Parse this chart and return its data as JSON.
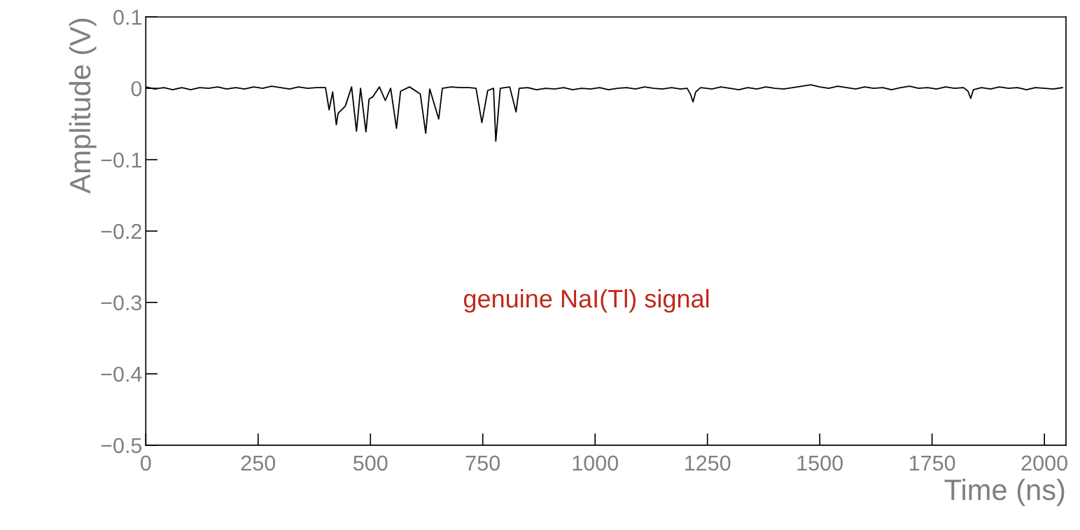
{
  "chart_data": {
    "type": "line",
    "xlabel": "Time (ns)",
    "ylabel": "Amplitude (V)",
    "annotations": [
      "genuine NaI(Tl) signal"
    ],
    "xlim": [
      0,
      2048
    ],
    "ylim": [
      -0.5,
      0.1
    ],
    "xticks": [
      0,
      250,
      500,
      750,
      1000,
      1250,
      1500,
      1750,
      2000
    ],
    "yticks": [
      {
        "value": -0.5,
        "label": "−0.5"
      },
      {
        "value": -0.4,
        "label": "−0.4"
      },
      {
        "value": -0.3,
        "label": "−0.3"
      },
      {
        "value": -0.2,
        "label": "−0.2"
      },
      {
        "value": -0.1,
        "label": "−0.1"
      },
      0,
      0.1
    ],
    "grid": false,
    "marker": "none",
    "line_style": "solid",
    "series": [
      {
        "color": "#000000",
        "x": [
          0,
          20,
          40,
          60,
          80,
          100,
          120,
          140,
          160,
          180,
          200,
          220,
          240,
          260,
          280,
          300,
          320,
          340,
          360,
          380,
          400,
          408,
          416,
          424,
          428,
          444,
          458,
          469,
          478,
          490,
          497,
          505,
          520,
          533,
          545,
          558,
          567,
          587,
          611,
          623,
          632,
          652,
          660,
          680,
          700,
          720,
          735,
          748,
          761,
          774,
          779,
          789,
          810,
          824,
          831,
          850,
          870,
          890,
          910,
          930,
          950,
          970,
          990,
          1010,
          1030,
          1050,
          1070,
          1090,
          1110,
          1130,
          1150,
          1170,
          1190,
          1205,
          1212,
          1218,
          1224,
          1235,
          1260,
          1280,
          1300,
          1320,
          1340,
          1360,
          1380,
          1400,
          1420,
          1440,
          1460,
          1480,
          1500,
          1520,
          1540,
          1560,
          1580,
          1600,
          1620,
          1640,
          1660,
          1680,
          1700,
          1720,
          1740,
          1760,
          1780,
          1800,
          1820,
          1830,
          1836,
          1842,
          1860,
          1880,
          1900,
          1920,
          1940,
          1960,
          1980,
          2000,
          2020,
          2040
        ],
        "values": [
          0.002,
          -0.001,
          0.001,
          -0.002,
          0.001,
          -0.002,
          0.001,
          0,
          0.002,
          -0.001,
          0.001,
          -0.001,
          0.002,
          0,
          0.003,
          0.001,
          -0.001,
          0.002,
          0,
          0.001,
          0.001,
          -0.03,
          -0.005,
          -0.051,
          -0.035,
          -0.025,
          0.002,
          -0.06,
          0,
          -0.061,
          -0.015,
          -0.012,
          0.002,
          -0.017,
          0,
          -0.056,
          -0.004,
          0.002,
          -0.008,
          -0.063,
          -0.001,
          -0.043,
          0,
          0.002,
          0.001,
          0.001,
          0,
          -0.048,
          -0.003,
          0,
          -0.074,
          0,
          0.002,
          -0.033,
          0,
          0.001,
          -0.002,
          0,
          -0.001,
          0.001,
          -0.002,
          0,
          -0.001,
          0.001,
          -0.002,
          0,
          0.001,
          -0.001,
          0.002,
          0,
          -0.001,
          0.001,
          -0.001,
          0,
          -0.008,
          -0.019,
          -0.005,
          0.001,
          -0.001,
          0.002,
          0,
          -0.002,
          0.001,
          -0.001,
          0.002,
          0,
          -0.001,
          0.001,
          0.003,
          0.005,
          0.002,
          0,
          0.003,
          0.001,
          -0.001,
          0.002,
          0,
          0.001,
          -0.002,
          0.001,
          0.003,
          0,
          0.001,
          -0.001,
          0.002,
          0,
          0.001,
          -0.004,
          -0.014,
          -0.002,
          0.001,
          -0.001,
          0.002,
          0,
          0.001,
          -0.002,
          0.001,
          0,
          -0.001,
          0.001
        ]
      }
    ]
  }
}
